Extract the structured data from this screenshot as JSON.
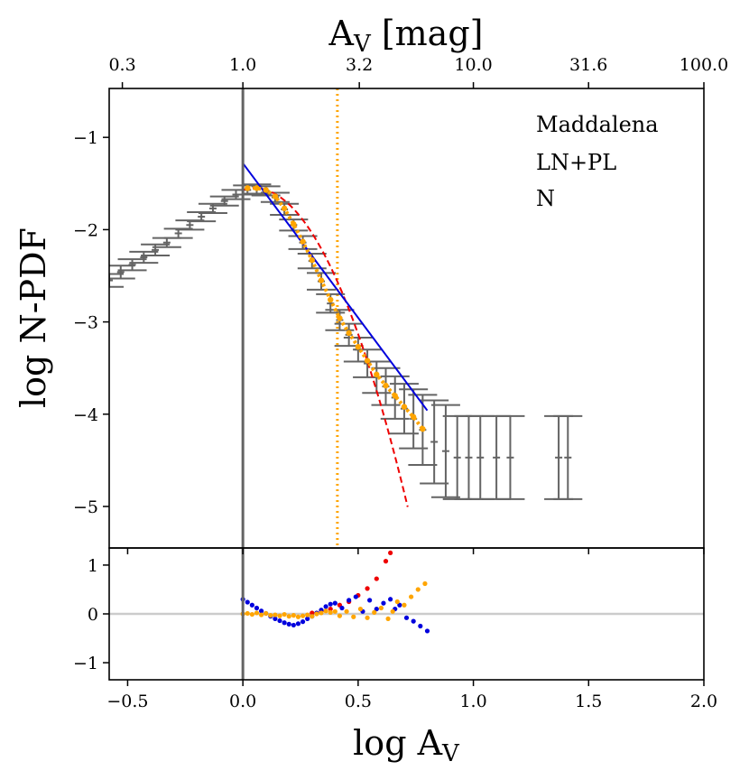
{
  "chart_data": {
    "type": "scatter",
    "top_axis": {
      "label": "A_V [mag]",
      "label_main": "A",
      "label_sub": "V",
      "label_rest": " [mag]",
      "ticks": [
        {
          "label": "0.3",
          "logv": -0.5229
        },
        {
          "label": "1.0",
          "logv": 0.0
        },
        {
          "label": "3.2",
          "logv": 0.5051
        },
        {
          "label": "10.0",
          "logv": 1.0
        },
        {
          "label": "31.6",
          "logv": 1.4997
        },
        {
          "label": "100.0",
          "logv": 2.0
        }
      ]
    },
    "bottom_axis": {
      "label": "log A_V",
      "label_main": "log A",
      "label_sub": "V",
      "xlim": [
        -0.58,
        2.0
      ],
      "ticks": [
        {
          "label": "−0.5",
          "v": -0.5
        },
        {
          "label": "0.0",
          "v": 0.0
        },
        {
          "label": "0.5",
          "v": 0.5
        },
        {
          "label": "1.0",
          "v": 1.0
        },
        {
          "label": "1.5",
          "v": 1.5
        },
        {
          "label": "2.0",
          "v": 2.0
        }
      ]
    },
    "main_panel": {
      "ylabel": "log N-PDF",
      "ylim": [
        -5.45,
        -0.47
      ],
      "yticks": [
        {
          "label": "−1",
          "v": -1
        },
        {
          "label": "−2",
          "v": -2
        },
        {
          "label": "−3",
          "v": -3
        },
        {
          "label": "−4",
          "v": -4
        },
        {
          "label": "−5",
          "v": -5
        }
      ],
      "annotations": [
        "Maddalena",
        "LN+PL",
        "N"
      ],
      "completeness_limit_logAv": 0.0,
      "transition_logAv": 0.41,
      "lognormal_fit": {
        "peak_logAv": 0.05,
        "peak_logN": -1.55,
        "sigma": 0.24,
        "color": "#ee0000"
      },
      "powerlaw_fit": {
        "x_range": [
          0.0,
          0.8
        ],
        "y_at_start": -1.28,
        "slope": -3.35,
        "color": "#0000dd"
      },
      "observed": [
        {
          "x": -0.58,
          "y": -2.55,
          "err": 0.07
        },
        {
          "x": -0.53,
          "y": -2.46,
          "err": 0.07
        },
        {
          "x": -0.48,
          "y": -2.38,
          "err": 0.06
        },
        {
          "x": -0.43,
          "y": -2.3,
          "err": 0.06
        },
        {
          "x": -0.38,
          "y": -2.22,
          "err": 0.06
        },
        {
          "x": -0.33,
          "y": -2.14,
          "err": 0.05
        },
        {
          "x": -0.28,
          "y": -2.04,
          "err": 0.05
        },
        {
          "x": -0.23,
          "y": -1.95,
          "err": 0.05
        },
        {
          "x": -0.18,
          "y": -1.86,
          "err": 0.05
        },
        {
          "x": -0.13,
          "y": -1.77,
          "err": 0.05
        },
        {
          "x": -0.08,
          "y": -1.69,
          "err": 0.05
        },
        {
          "x": -0.03,
          "y": -1.62,
          "err": 0.05
        },
        {
          "x": 0.02,
          "y": -1.57,
          "err": 0.05
        },
        {
          "x": 0.06,
          "y": -1.56,
          "err": 0.05
        },
        {
          "x": 0.1,
          "y": -1.58,
          "err": 0.05
        },
        {
          "x": 0.14,
          "y": -1.65,
          "err": 0.05
        },
        {
          "x": 0.18,
          "y": -1.78,
          "err": 0.06
        },
        {
          "x": 0.22,
          "y": -1.95,
          "err": 0.06
        },
        {
          "x": 0.26,
          "y": -2.14,
          "err": 0.07
        },
        {
          "x": 0.3,
          "y": -2.34,
          "err": 0.08
        },
        {
          "x": 0.34,
          "y": -2.56,
          "err": 0.09
        },
        {
          "x": 0.38,
          "y": -2.8,
          "err": 0.1
        },
        {
          "x": 0.42,
          "y": -2.98,
          "err": 0.11
        },
        {
          "x": 0.46,
          "y": -3.14,
          "err": 0.12
        },
        {
          "x": 0.5,
          "y": -3.3,
          "err": 0.13
        },
        {
          "x": 0.54,
          "y": -3.45,
          "err": 0.15
        },
        {
          "x": 0.58,
          "y": -3.6,
          "err": 0.17
        },
        {
          "x": 0.62,
          "y": -3.7,
          "err": 0.2
        },
        {
          "x": 0.66,
          "y": -3.82,
          "err": 0.23
        },
        {
          "x": 0.7,
          "y": -3.94,
          "err": 0.27
        },
        {
          "x": 0.74,
          "y": -4.05,
          "err": 0.32
        },
        {
          "x": 0.78,
          "y": -4.17,
          "err": 0.38
        },
        {
          "x": 0.83,
          "y": -4.3,
          "err": 0.45
        },
        {
          "x": 0.88,
          "y": -4.4,
          "err": 0.5
        },
        {
          "x": 0.93,
          "y": -4.47,
          "err": 0.45
        },
        {
          "x": 0.98,
          "y": -4.47,
          "err": 0.45
        },
        {
          "x": 1.03,
          "y": -4.47,
          "err": 0.45
        },
        {
          "x": 1.1,
          "y": -4.47,
          "err": 0.45
        },
        {
          "x": 1.16,
          "y": -4.47,
          "err": 0.45
        },
        {
          "x": 1.37,
          "y": -4.47,
          "err": 0.45
        },
        {
          "x": 1.41,
          "y": -4.47,
          "err": 0.45
        }
      ],
      "model_points": [
        {
          "x": 0.02,
          "y": -1.55
        },
        {
          "x": 0.06,
          "y": -1.55
        },
        {
          "x": 0.1,
          "y": -1.57
        },
        {
          "x": 0.14,
          "y": -1.64
        },
        {
          "x": 0.18,
          "y": -1.77
        },
        {
          "x": 0.22,
          "y": -1.94
        },
        {
          "x": 0.26,
          "y": -2.13
        },
        {
          "x": 0.3,
          "y": -2.33
        },
        {
          "x": 0.34,
          "y": -2.55
        },
        {
          "x": 0.38,
          "y": -2.76
        },
        {
          "x": 0.42,
          "y": -2.96
        },
        {
          "x": 0.46,
          "y": -3.12
        },
        {
          "x": 0.5,
          "y": -3.27
        },
        {
          "x": 0.54,
          "y": -3.42
        },
        {
          "x": 0.58,
          "y": -3.57
        },
        {
          "x": 0.62,
          "y": -3.69
        },
        {
          "x": 0.66,
          "y": -3.8
        },
        {
          "x": 0.7,
          "y": -3.92
        },
        {
          "x": 0.74,
          "y": -4.03
        },
        {
          "x": 0.78,
          "y": -4.16
        }
      ]
    },
    "residual_panel": {
      "ylim": [
        -1.35,
        1.35
      ],
      "yticks": [
        {
          "label": "1",
          "v": 1
        },
        {
          "label": "0",
          "v": 0
        },
        {
          "label": "−1",
          "v": -1
        }
      ],
      "lognormal_residuals": [
        {
          "x": 0.3,
          "y": 0.02
        },
        {
          "x": 0.34,
          "y": 0.05
        },
        {
          "x": 0.38,
          "y": 0.1
        },
        {
          "x": 0.42,
          "y": 0.18
        },
        {
          "x": 0.46,
          "y": 0.25
        },
        {
          "x": 0.5,
          "y": 0.38
        },
        {
          "x": 0.54,
          "y": 0.52
        },
        {
          "x": 0.58,
          "y": 0.72
        },
        {
          "x": 0.62,
          "y": 1.08
        },
        {
          "x": 0.64,
          "y": 1.25
        }
      ],
      "powerlaw_residuals": [
        {
          "x": 0.0,
          "y": 0.3
        },
        {
          "x": 0.02,
          "y": 0.24
        },
        {
          "x": 0.04,
          "y": 0.18
        },
        {
          "x": 0.06,
          "y": 0.12
        },
        {
          "x": 0.08,
          "y": 0.06
        },
        {
          "x": 0.1,
          "y": 0.01
        },
        {
          "x": 0.12,
          "y": -0.05
        },
        {
          "x": 0.14,
          "y": -0.1
        },
        {
          "x": 0.16,
          "y": -0.14
        },
        {
          "x": 0.18,
          "y": -0.18
        },
        {
          "x": 0.2,
          "y": -0.21
        },
        {
          "x": 0.22,
          "y": -0.23
        },
        {
          "x": 0.24,
          "y": -0.2
        },
        {
          "x": 0.26,
          "y": -0.16
        },
        {
          "x": 0.28,
          "y": -0.1
        },
        {
          "x": 0.3,
          "y": -0.05
        },
        {
          "x": 0.32,
          "y": 0.02
        },
        {
          "x": 0.34,
          "y": 0.08
        },
        {
          "x": 0.36,
          "y": 0.15
        },
        {
          "x": 0.38,
          "y": 0.2
        },
        {
          "x": 0.4,
          "y": 0.22
        },
        {
          "x": 0.43,
          "y": 0.12
        },
        {
          "x": 0.46,
          "y": 0.28
        },
        {
          "x": 0.49,
          "y": 0.35
        },
        {
          "x": 0.52,
          "y": 0.05
        },
        {
          "x": 0.55,
          "y": 0.28
        },
        {
          "x": 0.58,
          "y": 0.1
        },
        {
          "x": 0.61,
          "y": 0.22
        },
        {
          "x": 0.64,
          "y": 0.3
        },
        {
          "x": 0.66,
          "y": 0.1
        },
        {
          "x": 0.68,
          "y": 0.18
        },
        {
          "x": 0.71,
          "y": -0.08
        },
        {
          "x": 0.74,
          "y": -0.15
        },
        {
          "x": 0.77,
          "y": -0.25
        },
        {
          "x": 0.8,
          "y": -0.35
        }
      ],
      "combined_residuals": [
        {
          "x": 0.0,
          "y": 0.0
        },
        {
          "x": 0.02,
          "y": 0.01
        },
        {
          "x": 0.04,
          "y": -0.01
        },
        {
          "x": 0.06,
          "y": 0.02
        },
        {
          "x": 0.08,
          "y": -0.02
        },
        {
          "x": 0.1,
          "y": 0.01
        },
        {
          "x": 0.12,
          "y": -0.03
        },
        {
          "x": 0.14,
          "y": -0.02
        },
        {
          "x": 0.16,
          "y": -0.04
        },
        {
          "x": 0.18,
          "y": -0.01
        },
        {
          "x": 0.2,
          "y": -0.05
        },
        {
          "x": 0.22,
          "y": -0.03
        },
        {
          "x": 0.24,
          "y": -0.06
        },
        {
          "x": 0.26,
          "y": -0.04
        },
        {
          "x": 0.28,
          "y": -0.02
        },
        {
          "x": 0.3,
          "y": -0.05
        },
        {
          "x": 0.32,
          "y": 0.0
        },
        {
          "x": 0.34,
          "y": 0.02
        },
        {
          "x": 0.36,
          "y": 0.06
        },
        {
          "x": 0.38,
          "y": 0.03
        },
        {
          "x": 0.4,
          "y": 0.05
        },
        {
          "x": 0.42,
          "y": -0.04
        },
        {
          "x": 0.45,
          "y": 0.05
        },
        {
          "x": 0.48,
          "y": -0.06
        },
        {
          "x": 0.51,
          "y": 0.1
        },
        {
          "x": 0.54,
          "y": -0.08
        },
        {
          "x": 0.57,
          "y": 0.03
        },
        {
          "x": 0.6,
          "y": 0.12
        },
        {
          "x": 0.63,
          "y": -0.1
        },
        {
          "x": 0.65,
          "y": 0.05
        },
        {
          "x": 0.67,
          "y": 0.25
        },
        {
          "x": 0.7,
          "y": 0.18
        },
        {
          "x": 0.73,
          "y": 0.35
        },
        {
          "x": 0.76,
          "y": 0.5
        },
        {
          "x": 0.79,
          "y": 0.62
        }
      ]
    },
    "colors": {
      "data": "#646464",
      "lognormal": "#ee0000",
      "powerlaw": "#0000dd",
      "combined": "#ffa500",
      "zero_line": "#cccccc",
      "axes": "#000000"
    }
  }
}
